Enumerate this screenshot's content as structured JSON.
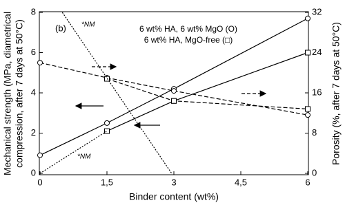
{
  "chart_data": {
    "type": "line",
    "panel_label": "(b)",
    "xlabel": "Binder content (wt%)",
    "ylabel": [
      "Mechanical strength (MPa, diametrical",
      "compression, after 7 days at 50°C)"
    ],
    "y2label": "Porosity (%, after 7 days at 50°C)",
    "legend_lines": [
      "6 wt% HA, 6 wt% MgO (O)",
      "6 wt% HA, MgO-free (□)"
    ],
    "annotations": [
      "*NM",
      "*NM"
    ],
    "xlim": [
      0,
      6
    ],
    "xticks": [
      0,
      {
        "value": 1.5,
        "label": "1,5"
      },
      3,
      {
        "value": 4.5,
        "label": "4,5"
      },
      6
    ],
    "ylim": [
      0,
      8
    ],
    "yticks": [
      0,
      2,
      4,
      6,
      8
    ],
    "y2lim": [
      0,
      32
    ],
    "y2ticks": [
      0,
      8,
      16,
      24,
      32
    ],
    "series": [
      {
        "x": [
          0,
          1.5,
          3,
          6
        ],
        "values": [
          0.9,
          2.5,
          4.2,
          7.7
        ],
        "marker": "circle",
        "dash": "solid",
        "color": "#000000"
      },
      {
        "x": [
          1.5,
          3,
          6
        ],
        "values": [
          2.1,
          3.6,
          6.0
        ],
        "marker": "square",
        "dash": "solid",
        "color": "#000000"
      },
      {
        "x": [
          0,
          1.5,
          3,
          6
        ],
        "values": [
          22,
          19,
          16.4,
          11.6
        ],
        "marker": "circle",
        "dash": "dashed",
        "axis": "y2",
        "color": "#000000"
      },
      {
        "x": [
          1.5,
          3,
          6
        ],
        "values": [
          18.8,
          14.4,
          12.8
        ],
        "marker": "square",
        "dash": "dashed",
        "axis": "y2",
        "color": "#000000"
      },
      {
        "x": [
          0.5,
          2.95
        ],
        "values": [
          8,
          0
        ],
        "marker": "none",
        "dash": "dotted",
        "color": "#000000"
      },
      {
        "x": [
          0,
          1.5
        ],
        "values": [
          0,
          2.1
        ],
        "marker": "none",
        "dash": "dotted",
        "color": "#000000"
      }
    ]
  }
}
